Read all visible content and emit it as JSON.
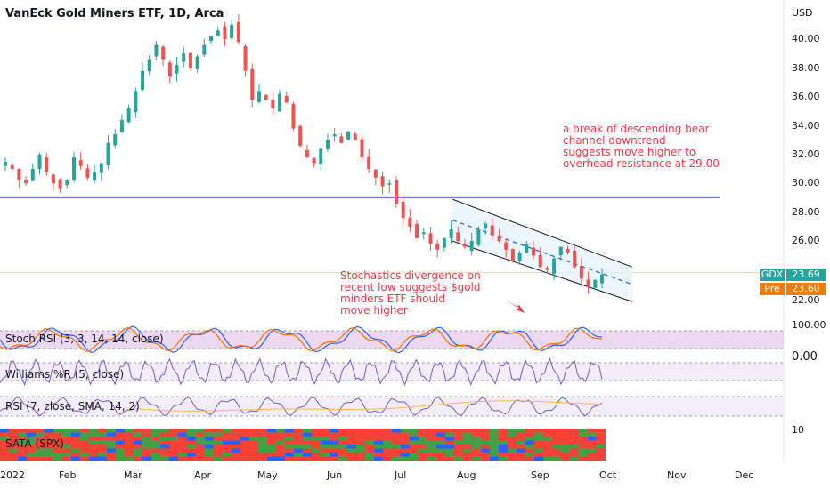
{
  "header": {
    "title": "VanEck Gold Miners ETF, 1D, Arca"
  },
  "price_axis": {
    "unit": "USD",
    "ticks": [
      "40.00",
      "38.00",
      "36.00",
      "34.00",
      "32.00",
      "30.00",
      "28.00",
      "26.00",
      "22.00"
    ]
  },
  "badges": {
    "gdx_label": "GDX",
    "gdx_value": "23.69",
    "gdx_color": "#26a69a",
    "pre_label": "Pre",
    "pre_value": "23.60",
    "pre_color": "#f57c00"
  },
  "indicators": {
    "stoch_rsi": {
      "label": "Stoch RSI (3, 3, 14, 14, close)",
      "axis_top": "100.00",
      "axis_bottom": "0.00"
    },
    "williams": {
      "label": "Williams %R (5, close)"
    },
    "rsi": {
      "label": "RSI (7, close, SMA, 14, 2)"
    },
    "sata": {
      "label": "SATA (SPX)",
      "axis": "10"
    }
  },
  "annotations": {
    "breakout": "a break of descending bear\nchannel downtrend\nsuggests move higher to\noverhead resistance at 29.00",
    "divergence": "Stochastics divergence on\nrecent low suggests $gold\nminders ETF should\nmove higher"
  },
  "x_axis": {
    "labels": [
      "2022",
      "Feb",
      "Mar",
      "Apr",
      "May",
      "Jun",
      "Jul",
      "Aug",
      "Sep",
      "Oct",
      "Nov",
      "Dec"
    ]
  },
  "chart_data": {
    "type": "candlestick",
    "title": "VanEck Gold Miners ETF, 1D, Arca",
    "ylabel": "USD",
    "ylim": [
      21.5,
      41.5
    ],
    "categories": [
      "Jan",
      "Feb",
      "Mar",
      "Apr",
      "May",
      "Jun",
      "Jul",
      "Aug",
      "Sep",
      "Oct",
      "Nov",
      "Dec"
    ],
    "close_series": [
      31.5,
      31.0,
      30.2,
      30.0,
      31.0,
      32.0,
      30.8,
      30.0,
      29.6,
      30.2,
      31.8,
      31.2,
      30.4,
      30.8,
      31.4,
      32.8,
      33.4,
      34.4,
      35.2,
      36.4,
      37.8,
      38.6,
      39.6,
      38.6,
      37.4,
      38.2,
      39.0,
      38.0,
      38.8,
      39.6,
      40.2,
      40.6,
      40.0,
      41.0,
      39.8,
      37.8,
      35.8,
      36.4,
      35.8,
      35.2,
      36.2,
      35.6,
      33.8,
      32.6,
      31.8,
      31.4,
      32.4,
      33.0,
      33.4,
      32.8,
      33.6,
      33.0,
      31.8,
      31.0,
      30.4,
      29.8,
      30.0,
      28.6,
      27.6,
      27.0,
      26.2,
      26.6,
      25.8,
      25.4,
      26.2,
      26.8,
      26.0,
      25.6,
      26.0,
      26.8,
      27.2,
      26.4,
      26.0,
      25.4,
      24.6,
      25.2,
      25.8,
      25.0,
      24.2,
      24.0,
      24.8,
      25.6,
      25.2,
      24.2,
      23.4,
      22.8,
      23.3,
      23.69
    ],
    "resistance_level": 29.0,
    "last_price": 23.69,
    "premarket": 23.6,
    "channel": {
      "upper": [
        [
          28.9,
          24.2
        ]
      ],
      "lower": [
        [
          26.0,
          21.8
        ]
      ]
    }
  }
}
